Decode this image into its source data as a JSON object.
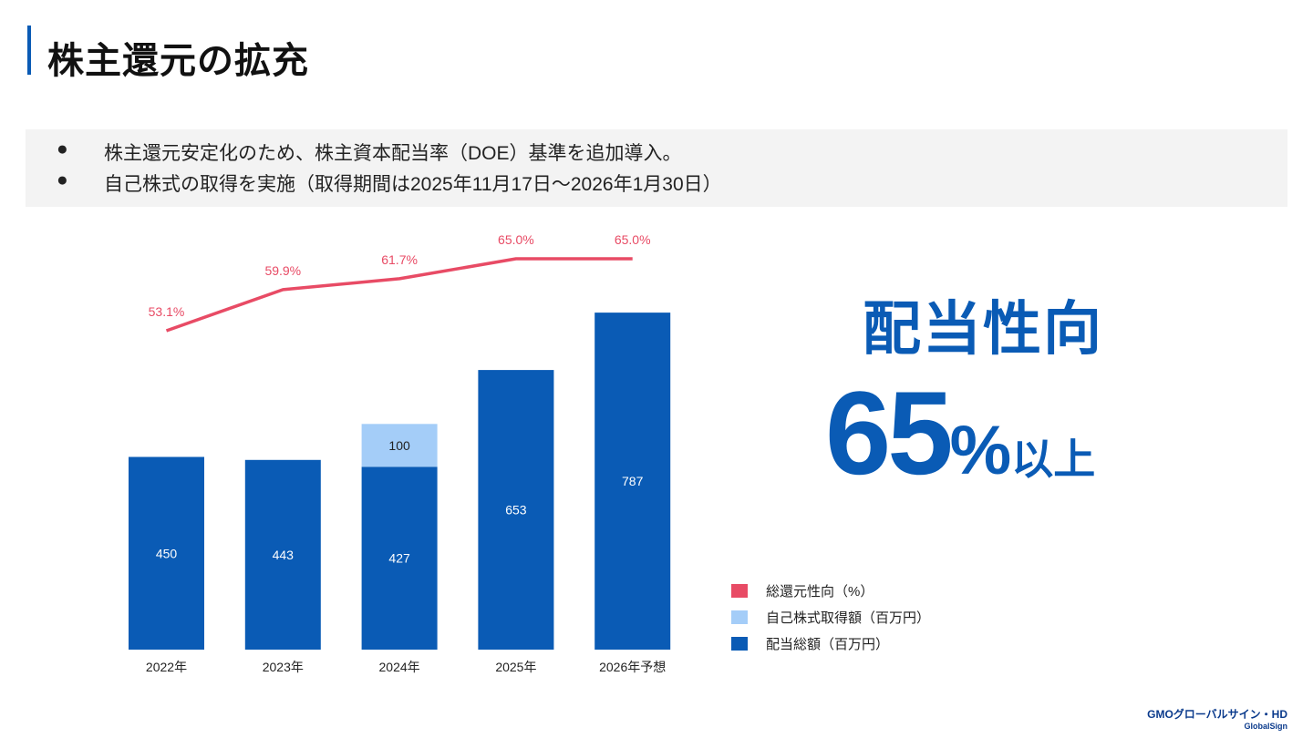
{
  "page": {
    "title": "株主還元の拡充",
    "bullets": [
      "株主還元安定化のため、株主資本配当率（DOE）基準を追加導入。",
      "自己株式の取得を実施（取得期間は2025年11月17日～2026年1月30日）"
    ],
    "bullet_symbol": "●"
  },
  "highlight": {
    "label": "配当性向",
    "value": "65",
    "percent": "%",
    "suffix": "以上"
  },
  "legend": [
    {
      "label": "総還元性向（%）",
      "color": "#e84b65"
    },
    {
      "label": "自己株式取得額（百万円）",
      "color": "#a4cdf8"
    },
    {
      "label": "配当総額（百万円）",
      "color": "#0a5bb5"
    }
  ],
  "footer": {
    "logo_main": "GMOグローバルサイン・HD",
    "logo_sub": "GlobalSign"
  },
  "chart_data": {
    "type": "bar",
    "stacked": true,
    "categories": [
      "2022年",
      "2023年",
      "2024年",
      "2025年",
      "2026年予想"
    ],
    "series": [
      {
        "name": "配当総額（百万円）",
        "type": "bar",
        "color": "#0a5bb5",
        "values": [
          450,
          443,
          427,
          653,
          787
        ],
        "labels": [
          "450",
          "443",
          "427",
          "653",
          "787"
        ]
      },
      {
        "name": "自己株式取得額（百万円）",
        "type": "bar",
        "color": "#a4cdf8",
        "values": [
          0,
          0,
          100,
          0,
          0
        ],
        "labels": [
          "",
          "",
          "100",
          "",
          ""
        ]
      },
      {
        "name": "総還元性向（%）",
        "type": "line",
        "color": "#e84b65",
        "values": [
          53.1,
          59.9,
          61.7,
          65.0,
          65.0
        ],
        "labels": [
          "53.1%",
          "59.9%",
          "61.7%",
          "65.0%",
          "65.0%"
        ]
      }
    ],
    "bar_ylim": [
      0,
      890
    ],
    "line_ylim": [
      35,
      70
    ]
  }
}
